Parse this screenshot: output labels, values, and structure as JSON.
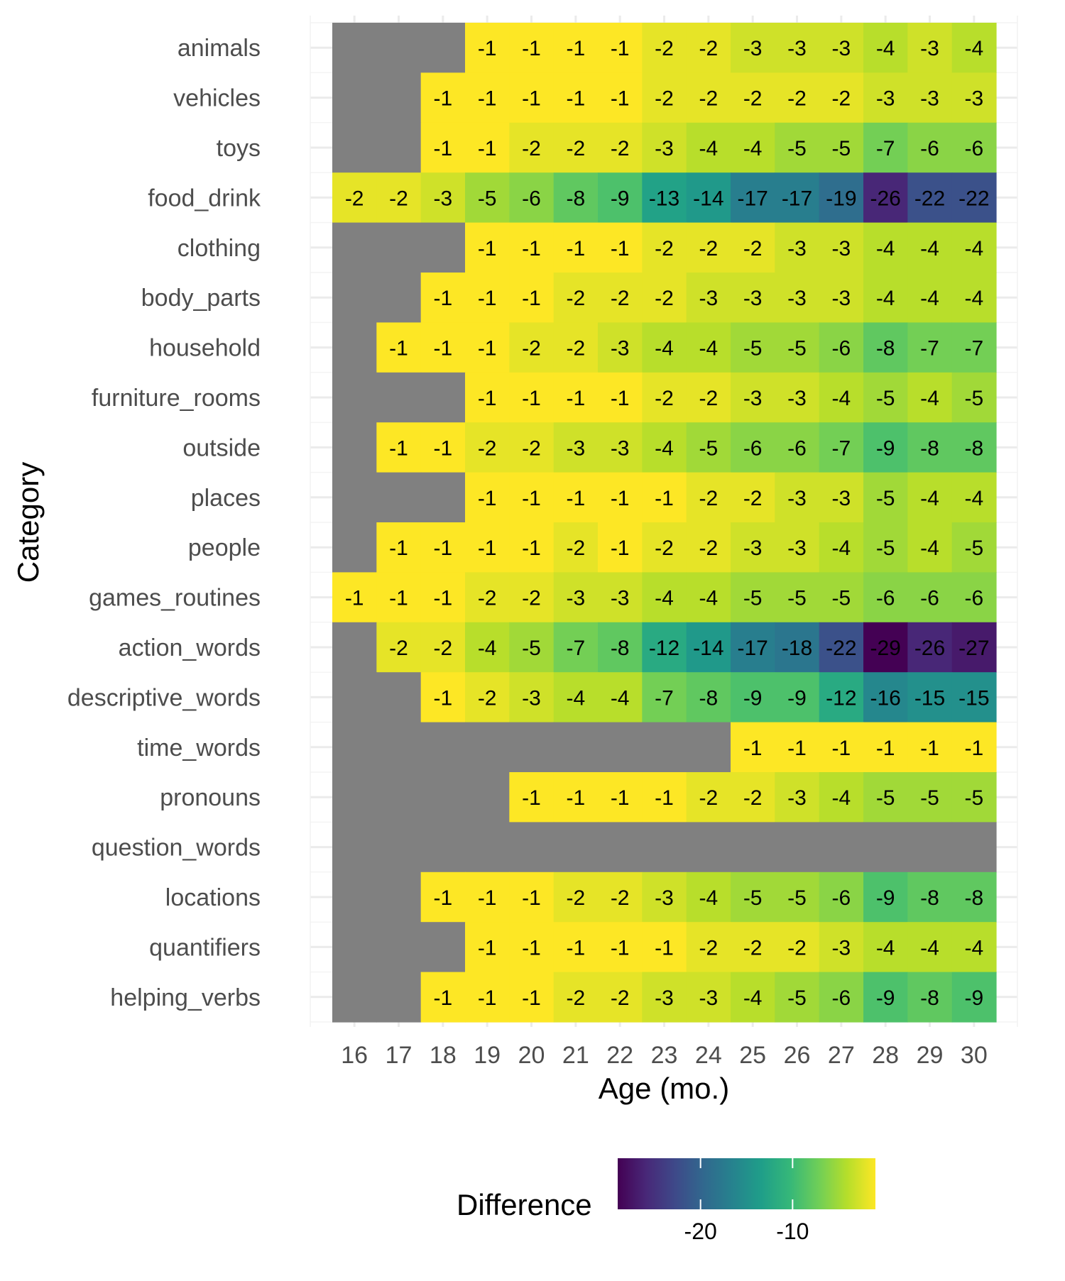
{
  "chart_data": {
    "type": "heatmap",
    "xlabel": "Age (mo.)",
    "ylabel": "Category",
    "x": [
      16,
      17,
      18,
      19,
      20,
      21,
      22,
      23,
      24,
      25,
      26,
      27,
      28,
      29,
      30
    ],
    "y": [
      "animals",
      "vehicles",
      "toys",
      "food_drink",
      "clothing",
      "body_parts",
      "household",
      "furniture_rooms",
      "outside",
      "places",
      "people",
      "games_routines",
      "action_words",
      "descriptive_words",
      "time_words",
      "pronouns",
      "question_words",
      "locations",
      "quantifiers",
      "helping_verbs"
    ],
    "values": [
      [
        null,
        null,
        null,
        -1,
        -1,
        -1,
        -1,
        -2,
        -2,
        -3,
        -3,
        -3,
        -4,
        -3,
        -4
      ],
      [
        null,
        null,
        -1,
        -1,
        -1,
        -1,
        -1,
        -2,
        -2,
        -2,
        -2,
        -2,
        -3,
        -3,
        -3
      ],
      [
        null,
        null,
        -1,
        -1,
        -2,
        -2,
        -2,
        -3,
        -4,
        -4,
        -5,
        -5,
        -7,
        -6,
        -6
      ],
      [
        -2,
        -2,
        -3,
        -5,
        -6,
        -8,
        -9,
        -13,
        -14,
        -17,
        -17,
        -19,
        -26,
        -22,
        -22
      ],
      [
        null,
        null,
        null,
        -1,
        -1,
        -1,
        -1,
        -2,
        -2,
        -2,
        -3,
        -3,
        -4,
        -4,
        -4
      ],
      [
        null,
        null,
        -1,
        -1,
        -1,
        -2,
        -2,
        -2,
        -3,
        -3,
        -3,
        -3,
        -4,
        -4,
        -4
      ],
      [
        null,
        -1,
        -1,
        -1,
        -2,
        -2,
        -3,
        -4,
        -4,
        -5,
        -5,
        -6,
        -8,
        -7,
        -7
      ],
      [
        null,
        null,
        null,
        -1,
        -1,
        -1,
        -1,
        -2,
        -2,
        -3,
        -3,
        -4,
        -5,
        -4,
        -5
      ],
      [
        null,
        -1,
        -1,
        -2,
        -2,
        -3,
        -3,
        -4,
        -5,
        -6,
        -6,
        -7,
        -9,
        -8,
        -8
      ],
      [
        null,
        null,
        null,
        -1,
        -1,
        -1,
        -1,
        -1,
        -2,
        -2,
        -3,
        -3,
        -5,
        -4,
        -4
      ],
      [
        null,
        -1,
        -1,
        -1,
        -1,
        -2,
        -1,
        -2,
        -2,
        -3,
        -3,
        -4,
        -5,
        -4,
        -5
      ],
      [
        -1,
        -1,
        -1,
        -2,
        -2,
        -3,
        -3,
        -4,
        -4,
        -5,
        -5,
        -5,
        -6,
        -6,
        -6
      ],
      [
        null,
        -2,
        -2,
        -4,
        -5,
        -7,
        -8,
        -12,
        -14,
        -17,
        -18,
        -22,
        -29,
        -26,
        -27
      ],
      [
        null,
        null,
        -1,
        -2,
        -3,
        -4,
        -4,
        -7,
        -8,
        -9,
        -9,
        -12,
        -16,
        -15,
        -15
      ],
      [
        null,
        null,
        null,
        null,
        null,
        null,
        null,
        null,
        null,
        -1,
        -1,
        -1,
        -1,
        -1,
        -1
      ],
      [
        null,
        null,
        null,
        null,
        -1,
        -1,
        -1,
        -1,
        -2,
        -2,
        -3,
        -4,
        -5,
        -5,
        -5
      ],
      [
        null,
        null,
        null,
        null,
        null,
        null,
        null,
        null,
        null,
        null,
        null,
        null,
        null,
        null,
        null
      ],
      [
        null,
        null,
        -1,
        -1,
        -1,
        -2,
        -2,
        -3,
        -4,
        -5,
        -5,
        -6,
        -9,
        -8,
        -8
      ],
      [
        null,
        null,
        null,
        -1,
        -1,
        -1,
        -1,
        -1,
        -2,
        -2,
        -2,
        -3,
        -4,
        -4,
        -4
      ],
      [
        null,
        null,
        -1,
        -1,
        -1,
        -2,
        -2,
        -3,
        -3,
        -4,
        -5,
        -6,
        -9,
        -8,
        -9
      ]
    ],
    "missing_color": "#808080",
    "colorscale": "viridis",
    "color_range": [
      -29,
      -1
    ],
    "legend": {
      "title": "Difference",
      "position": "bottom",
      "ticks": [
        -20,
        -10
      ]
    },
    "grid": true
  }
}
